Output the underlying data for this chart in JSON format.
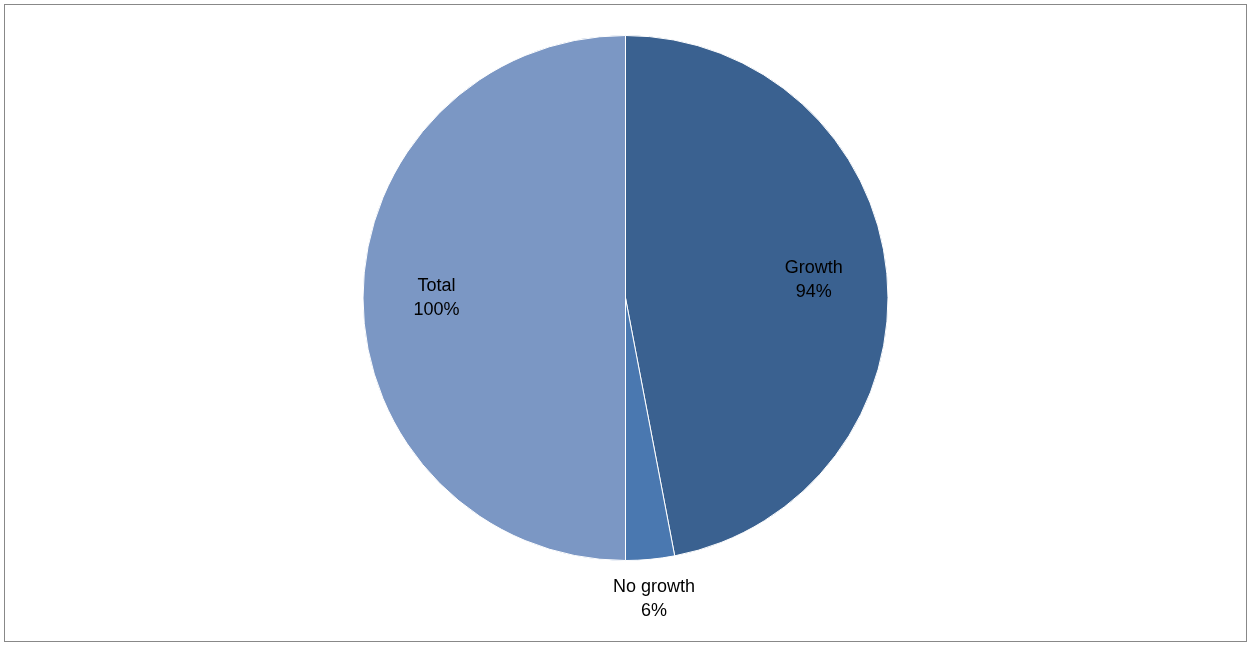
{
  "chart_data": {
    "type": "pie",
    "categories": [
      "Growth",
      "No growth",
      "Total"
    ],
    "values": [
      94,
      6,
      100
    ],
    "colors": [
      "#3a6190",
      "#4a78b0",
      "#7b97c4"
    ],
    "value_labels": [
      "94%",
      "6%",
      "100%"
    ],
    "legend": false
  }
}
